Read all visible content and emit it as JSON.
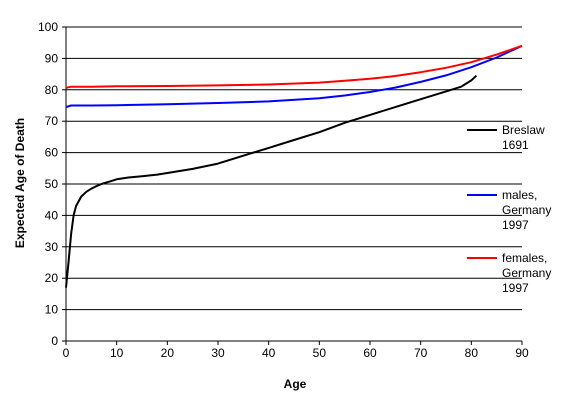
{
  "chart_data": {
    "type": "line",
    "xlabel": "Age",
    "ylabel": "Expected Age of Death",
    "xlim": [
      0,
      90
    ],
    "ylim": [
      0,
      100
    ],
    "xticks": [
      0,
      10,
      20,
      30,
      40,
      50,
      60,
      70,
      80,
      90
    ],
    "yticks": [
      0,
      10,
      20,
      30,
      40,
      50,
      60,
      70,
      80,
      90,
      100
    ],
    "grid": "horizontal",
    "legend_position": "right",
    "series": [
      {
        "name": "Breslaw 1691",
        "name_lines": [
          "Breslaw",
          "1691"
        ],
        "color": "#000000",
        "x": [
          0,
          0.5,
          1,
          1.5,
          2,
          3,
          4,
          5,
          6,
          7,
          8,
          9,
          10,
          12,
          15,
          18,
          20,
          25,
          30,
          35,
          40,
          45,
          50,
          55,
          60,
          65,
          70,
          75,
          78,
          80,
          81
        ],
        "y": [
          17,
          25,
          34,
          40,
          43,
          46,
          47.5,
          48.5,
          49.3,
          50,
          50.5,
          51,
          51.5,
          52,
          52.5,
          53,
          53.5,
          54.8,
          56.5,
          59,
          61.5,
          64,
          66.5,
          69.5,
          72,
          74.5,
          77,
          79.5,
          81,
          83,
          84.5
        ]
      },
      {
        "name": "males, Germany 1997",
        "name_lines": [
          "males,",
          "Germany",
          "1997"
        ],
        "color": "#0000ff",
        "x": [
          0,
          1,
          5,
          10,
          20,
          30,
          40,
          50,
          55,
          60,
          65,
          70,
          75,
          80,
          85,
          90
        ],
        "y": [
          74.5,
          75,
          75,
          75.1,
          75.4,
          75.8,
          76.3,
          77.3,
          78.2,
          79.3,
          80.7,
          82.5,
          84.6,
          87.2,
          90.3,
          94
        ]
      },
      {
        "name": "females, Germany 1997",
        "name_lines": [
          "females,",
          "Germany",
          "1997"
        ],
        "color": "#ff0000",
        "x": [
          0,
          1,
          5,
          10,
          20,
          30,
          40,
          50,
          55,
          60,
          65,
          70,
          75,
          80,
          85,
          90
        ],
        "y": [
          80.6,
          81,
          81,
          81.1,
          81.2,
          81.4,
          81.7,
          82.3,
          82.9,
          83.5,
          84.4,
          85.6,
          87,
          88.8,
          91.2,
          94
        ]
      }
    ]
  }
}
